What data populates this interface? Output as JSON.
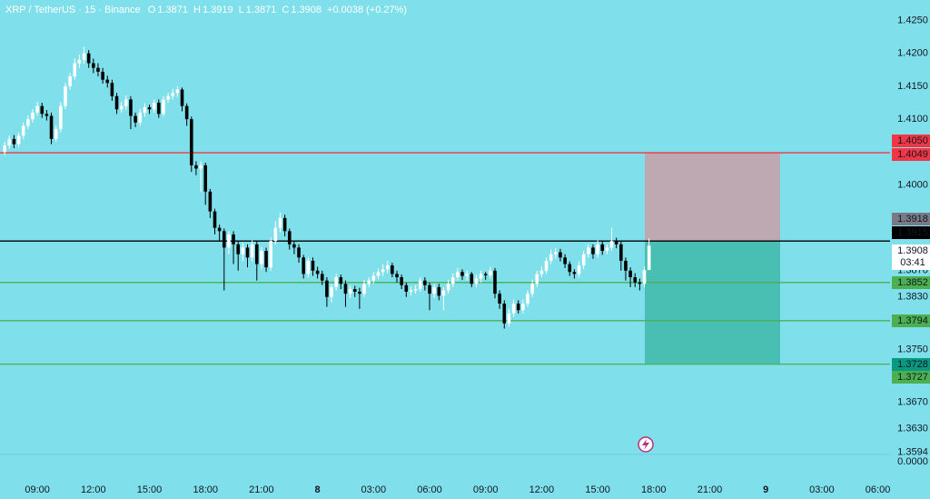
{
  "chart_data": {
    "type": "candlestick",
    "legend": {
      "symbol": "XRP / TetherUS · 15 · Binance",
      "o_label": "O",
      "o": "1.3871",
      "h_label": "H",
      "h": "1.3919",
      "l_label": "L",
      "l": "1.3871",
      "c_label": "C",
      "c": "1.3908",
      "change": "+0.0038 (+0.27%)"
    },
    "xlim": [
      -1,
      190
    ],
    "xticks": [
      {
        "value": 7,
        "label": "09:00"
      },
      {
        "value": 19,
        "label": "12:00"
      },
      {
        "value": 31,
        "label": "15:00"
      },
      {
        "value": 43,
        "label": "18:00"
      },
      {
        "value": 55,
        "label": "21:00"
      },
      {
        "value": 67,
        "label": "8"
      },
      {
        "value": 79,
        "label": "03:00"
      },
      {
        "value": 91,
        "label": "06:00"
      },
      {
        "value": 103,
        "label": "09:00"
      },
      {
        "value": 115,
        "label": "12:00"
      },
      {
        "value": 127,
        "label": "15:00"
      },
      {
        "value": 139,
        "label": "18:00"
      },
      {
        "value": 151,
        "label": "21:00"
      },
      {
        "value": 163,
        "label": "9"
      },
      {
        "value": 175,
        "label": "03:00"
      },
      {
        "value": 187,
        "label": "06:00"
      }
    ],
    "ylim": [
      1.3595,
      1.4281
    ],
    "yticks": [
      {
        "value": 1.425,
        "label": "1.4250"
      },
      {
        "value": 1.42,
        "label": "1.4200"
      },
      {
        "value": 1.415,
        "label": "1.4150"
      },
      {
        "value": 1.41,
        "label": "1.4100"
      },
      {
        "value": 1.4,
        "label": "1.4000"
      },
      {
        "value": 1.387,
        "label": "1.3870"
      },
      {
        "value": 1.383,
        "label": "1.3830"
      },
      {
        "value": 1.375,
        "label": "1.3750"
      },
      {
        "value": 1.367,
        "label": "1.3670"
      },
      {
        "value": 1.363,
        "label": "1.3630"
      },
      {
        "value": 1.3594,
        "label": "1.3594"
      }
    ],
    "lower_pane_tick": {
      "value": 0,
      "label": "0.0000"
    },
    "grid": false,
    "up_color": "#ffffff",
    "down_color": "#000000",
    "open": [
      1.405,
      1.406,
      1.407,
      1.4062,
      1.4075,
      1.409,
      1.41,
      1.411,
      1.412,
      1.4108,
      1.4105,
      1.407,
      1.4085,
      1.412,
      1.415,
      1.4165,
      1.4185,
      1.419,
      1.42,
      1.4185,
      1.4178,
      1.4172,
      1.416,
      1.4155,
      1.4135,
      1.4115,
      1.412,
      1.413,
      1.4105,
      1.4095,
      1.411,
      1.4118,
      1.4115,
      1.4125,
      1.4108,
      1.413,
      1.4135,
      1.414,
      1.4145,
      1.412,
      1.41,
      1.403,
      1.4025,
      1.403,
      1.399,
      1.396,
      1.3935,
      1.393,
      1.3905,
      1.3925,
      1.391,
      1.3895,
      1.3905,
      1.389,
      1.391,
      1.388,
      1.39,
      1.3875,
      1.3915,
      1.3935,
      1.395,
      1.393,
      1.391,
      1.3905,
      1.389,
      1.3865,
      1.3885,
      1.387,
      1.3865,
      1.3855,
      1.383,
      1.3845,
      1.386,
      1.385,
      1.3835,
      1.3842,
      1.3838,
      1.3835,
      1.385,
      1.3855,
      1.3862,
      1.3868,
      1.3872,
      1.3878,
      1.3865,
      1.386,
      1.3848,
      1.3838,
      1.384,
      1.3842,
      1.3855,
      1.3848,
      1.3835,
      1.3845,
      1.3832,
      1.384,
      1.385,
      1.386,
      1.3868,
      1.3862,
      1.3865,
      1.385,
      1.3858,
      1.3865,
      1.3863,
      1.387,
      1.3835,
      1.382,
      1.379,
      1.3805,
      1.382,
      1.381,
      1.382,
      1.3835,
      1.385,
      1.3865,
      1.387,
      1.3885,
      1.3895,
      1.3898,
      1.389,
      1.388,
      1.3868,
      1.3865,
      1.3878,
      1.3895,
      1.3905,
      1.3895,
      1.391,
      1.39,
      1.3905,
      1.3915,
      1.391,
      1.3885,
      1.387,
      1.386,
      1.3852,
      1.385,
      1.3871
    ],
    "high": [
      1.4066,
      1.4075,
      1.4076,
      1.408,
      1.4095,
      1.4106,
      1.4115,
      1.4126,
      1.4125,
      1.4114,
      1.411,
      1.409,
      1.4126,
      1.4155,
      1.417,
      1.4192,
      1.4198,
      1.421,
      1.4205,
      1.4192,
      1.4185,
      1.4178,
      1.4166,
      1.416,
      1.414,
      1.4126,
      1.4136,
      1.4135,
      1.411,
      1.4116,
      1.4124,
      1.4122,
      1.413,
      1.413,
      1.4135,
      1.414,
      1.4146,
      1.415,
      1.4148,
      1.4124,
      1.4104,
      1.4036,
      1.4036,
      1.4034,
      1.3994,
      1.3964,
      1.394,
      1.3934,
      1.393,
      1.393,
      1.3915,
      1.3912,
      1.391,
      1.3916,
      1.3915,
      1.3906,
      1.3905,
      1.392,
      1.3945,
      1.3958,
      1.3955,
      1.3934,
      1.3915,
      1.391,
      1.3894,
      1.389,
      1.389,
      1.3876,
      1.387,
      1.386,
      1.385,
      1.3865,
      1.3864,
      1.3855,
      1.3848,
      1.3847,
      1.3844,
      1.3856,
      1.386,
      1.3868,
      1.3873,
      1.388,
      1.3885,
      1.3882,
      1.387,
      1.3864,
      1.3852,
      1.3846,
      1.3848,
      1.386,
      1.386,
      1.3852,
      1.385,
      1.385,
      1.3845,
      1.3856,
      1.3866,
      1.3874,
      1.3872,
      1.387,
      1.3868,
      1.3864,
      1.387,
      1.3868,
      1.3876,
      1.3874,
      1.384,
      1.3825,
      1.3812,
      1.3826,
      1.3825,
      1.3826,
      1.384,
      1.3856,
      1.387,
      1.3876,
      1.389,
      1.3902,
      1.3904,
      1.3903,
      1.3895,
      1.3884,
      1.3872,
      1.3884,
      1.39,
      1.391,
      1.391,
      1.3916,
      1.3915,
      1.391,
      1.3935,
      1.392,
      1.3914,
      1.389,
      1.3875,
      1.3866,
      1.3858,
      1.3876,
      1.3919
    ],
    "low": [
      1.4045,
      1.4055,
      1.4056,
      1.4058,
      1.407,
      1.4085,
      1.4095,
      1.4105,
      1.4102,
      1.4098,
      1.4062,
      1.4066,
      1.408,
      1.4115,
      1.4145,
      1.416,
      1.4178,
      1.4184,
      1.4178,
      1.417,
      1.4165,
      1.4154,
      1.4148,
      1.4128,
      1.4108,
      1.411,
      1.4114,
      1.4085,
      1.4088,
      1.409,
      1.4104,
      1.4108,
      1.411,
      1.4102,
      1.4104,
      1.4125,
      1.413,
      1.4134,
      1.4112,
      1.409,
      1.402,
      1.4015,
      1.399,
      1.397,
      1.395,
      1.3925,
      1.3915,
      1.384,
      1.3895,
      1.388,
      1.387,
      1.3885,
      1.3875,
      1.3884,
      1.3855,
      1.3872,
      1.3868,
      1.387,
      1.391,
      1.3928,
      1.3922,
      1.3902,
      1.3895,
      1.3882,
      1.3858,
      1.386,
      1.3862,
      1.3858,
      1.3848,
      1.3815,
      1.3822,
      1.384,
      1.3842,
      1.3815,
      1.3828,
      1.383,
      1.3812,
      1.383,
      1.3845,
      1.385,
      1.3857,
      1.3862,
      1.3866,
      1.386,
      1.3852,
      1.3842,
      1.383,
      1.3832,
      1.3835,
      1.3838,
      1.384,
      1.381,
      1.3828,
      1.3825,
      1.381,
      1.3835,
      1.3845,
      1.3855,
      1.3856,
      1.3855,
      1.3845,
      1.3845,
      1.3852,
      1.3856,
      1.3858,
      1.3828,
      1.3812,
      1.3782,
      1.3785,
      1.38,
      1.3805,
      1.3805,
      1.3815,
      1.383,
      1.3845,
      1.386,
      1.3865,
      1.388,
      1.3888,
      1.3884,
      1.3874,
      1.3862,
      1.3858,
      1.386,
      1.3872,
      1.389,
      1.3888,
      1.389,
      1.3894,
      1.3895,
      1.39,
      1.3904,
      1.387,
      1.3855,
      1.3845,
      1.3845,
      1.384,
      1.3845,
      1.3871
    ],
    "close": [
      1.406,
      1.407,
      1.4062,
      1.4075,
      1.409,
      1.41,
      1.411,
      1.412,
      1.4108,
      1.4105,
      1.407,
      1.4085,
      1.412,
      1.415,
      1.4165,
      1.4185,
      1.419,
      1.42,
      1.4185,
      1.4178,
      1.4172,
      1.416,
      1.4155,
      1.4135,
      1.4115,
      1.412,
      1.413,
      1.4105,
      1.4095,
      1.411,
      1.4118,
      1.4115,
      1.4125,
      1.4108,
      1.413,
      1.4135,
      1.414,
      1.4145,
      1.412,
      1.41,
      1.403,
      1.4025,
      1.403,
      1.399,
      1.396,
      1.3935,
      1.393,
      1.3905,
      1.3925,
      1.391,
      1.3895,
      1.3905,
      1.389,
      1.391,
      1.388,
      1.39,
      1.3875,
      1.3915,
      1.3935,
      1.395,
      1.393,
      1.391,
      1.3905,
      1.389,
      1.3865,
      1.3885,
      1.387,
      1.3865,
      1.3855,
      1.383,
      1.3845,
      1.386,
      1.385,
      1.3835,
      1.3842,
      1.3838,
      1.3835,
      1.385,
      1.3855,
      1.3862,
      1.3868,
      1.3872,
      1.3878,
      1.3865,
      1.386,
      1.3848,
      1.3838,
      1.384,
      1.3842,
      1.3855,
      1.3848,
      1.3835,
      1.3845,
      1.3832,
      1.384,
      1.385,
      1.386,
      1.3868,
      1.3862,
      1.3865,
      1.385,
      1.3858,
      1.3865,
      1.3863,
      1.387,
      1.3835,
      1.382,
      1.379,
      1.3805,
      1.382,
      1.381,
      1.382,
      1.3835,
      1.385,
      1.3865,
      1.387,
      1.3885,
      1.3895,
      1.3898,
      1.389,
      1.388,
      1.3868,
      1.3865,
      1.3878,
      1.3895,
      1.3905,
      1.3895,
      1.391,
      1.39,
      1.3905,
      1.3915,
      1.391,
      1.3885,
      1.387,
      1.386,
      1.3852,
      1.385,
      1.3871,
      1.3908
    ],
    "lines": [
      {
        "value": 1.4049,
        "color": "#f23645"
      },
      {
        "value": 1.3915,
        "color": "#000000"
      },
      {
        "value": 1.3852,
        "color": "#4caf50"
      },
      {
        "value": 1.3794,
        "color": "#4caf50"
      },
      {
        "value": 1.3728,
        "color": "#4caf50"
      }
    ],
    "position": {
      "stop": 1.4049,
      "entry": 1.3915,
      "target": 1.3728,
      "stop_color": "#c9a0a8",
      "target_color": "#3fb8a8"
    },
    "price_labels": [
      {
        "value": 1.405,
        "label": "1.4050",
        "color": "#f23645",
        "text_color": "#ffffff"
      },
      {
        "value": 1.4049,
        "label": "1.4049",
        "color": "#f23645",
        "text_color": "#ffffff"
      },
      {
        "value": 1.3918,
        "label": "1.3918",
        "color": "#787b86",
        "text_color": "#ffffff"
      },
      {
        "value": 1.3915,
        "label": "1.3915",
        "color": "#000000",
        "text_color": "#ffffff"
      },
      {
        "value": 1.3908,
        "label": "1.3908",
        "color": "#ffffff",
        "text_color": "#000000",
        "countdown": "03:41"
      },
      {
        "value": 1.3852,
        "label": "1.3852",
        "color": "#4caf50",
        "text_color": "#ffffff"
      },
      {
        "value": 1.3794,
        "label": "1.3794",
        "color": "#4caf50",
        "text_color": "#ffffff"
      },
      {
        "value": 1.3728,
        "label": "1.3728",
        "color": "#089981",
        "text_color": "#ffffff"
      },
      {
        "value": 1.3727,
        "label": "1.3727",
        "color": "#4caf50",
        "text_color": "#ffffff"
      }
    ]
  }
}
